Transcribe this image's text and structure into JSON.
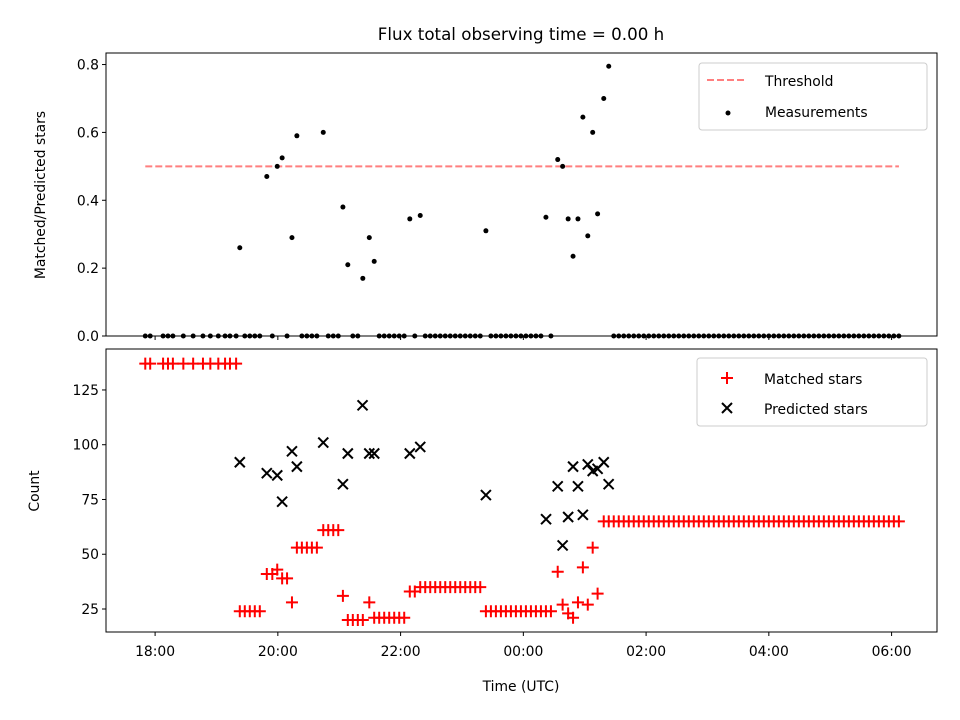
{
  "chart_data": [
    {
      "type": "scatter",
      "title": "Flux total observing time = 0.00 h",
      "xlabel": "",
      "ylabel": "Matched/Predicted stars",
      "xlim": [
        17.2,
        30.74
      ],
      "ylim": [
        0,
        0.834
      ],
      "yticks": [
        0.0,
        0.2,
        0.4,
        0.6,
        0.8
      ],
      "ytick_labels": [
        "0.0",
        "0.2",
        "0.4",
        "0.6",
        "0.8"
      ],
      "legend": {
        "placement": "top-right",
        "entries": [
          "Threshold",
          "Measurements"
        ]
      },
      "threshold": {
        "name": "Threshold",
        "y": 0.5,
        "x_range": [
          17.84,
          30.12
        ],
        "color": "#ff7f7f"
      },
      "measurements_nonzero": [
        [
          19.38,
          0.26
        ],
        [
          19.82,
          0.47
        ],
        [
          19.99,
          0.5
        ],
        [
          20.07,
          0.525
        ],
        [
          20.23,
          0.29
        ],
        [
          20.31,
          0.59
        ],
        [
          20.74,
          0.6
        ],
        [
          21.06,
          0.38
        ],
        [
          21.14,
          0.21
        ],
        [
          21.38,
          0.17
        ],
        [
          21.49,
          0.29
        ],
        [
          21.57,
          0.22
        ],
        [
          22.15,
          0.345
        ],
        [
          22.32,
          0.355
        ],
        [
          23.39,
          0.31
        ],
        [
          24.37,
          0.35
        ],
        [
          24.56,
          0.52
        ],
        [
          24.64,
          0.5
        ],
        [
          24.73,
          0.345
        ],
        [
          24.81,
          0.235
        ],
        [
          24.89,
          0.345
        ],
        [
          24.97,
          0.645
        ],
        [
          25.05,
          0.295
        ],
        [
          25.13,
          0.6
        ],
        [
          25.21,
          0.36
        ],
        [
          25.31,
          0.7
        ],
        [
          25.39,
          0.795
        ]
      ],
      "measurements_note_zero": "all other observation times have value 0"
    },
    {
      "type": "scatter",
      "xlabel": "Time (UTC)",
      "ylabel": "Count",
      "xlim": [
        17.2,
        30.74
      ],
      "ylim": [
        14.5,
        143.7
      ],
      "xticks": [
        18,
        20,
        22,
        24,
        26,
        28,
        30
      ],
      "xtick_labels": [
        "18:00",
        "20:00",
        "22:00",
        "00:00",
        "02:00",
        "04:00",
        "06:00"
      ],
      "yticks": [
        25,
        50,
        75,
        100,
        125
      ],
      "ytick_labels": [
        "25",
        "50",
        "75",
        "100",
        "125"
      ],
      "legend": {
        "placement": "top-right",
        "entries": [
          "Matched stars",
          "Predicted stars"
        ]
      },
      "matched_step_h": 0.0815,
      "matched_runs": [
        [
          17.84,
          1,
          137
        ],
        [
          17.92,
          1,
          137
        ],
        [
          18.13,
          1,
          137
        ],
        [
          18.21,
          1,
          137
        ],
        [
          18.29,
          1,
          137
        ],
        [
          18.46,
          1,
          137
        ],
        [
          18.62,
          1,
          137
        ],
        [
          18.78,
          1,
          137
        ],
        [
          18.9,
          1,
          137
        ],
        [
          19.03,
          1,
          137
        ],
        [
          19.14,
          1,
          137
        ],
        [
          19.22,
          1,
          137
        ],
        [
          19.32,
          1,
          137
        ],
        [
          19.38,
          5,
          24
        ],
        [
          19.82,
          1,
          41
        ],
        [
          19.91,
          1,
          41
        ],
        [
          19.99,
          1,
          43
        ],
        [
          20.07,
          1,
          39
        ],
        [
          20.15,
          1,
          39
        ],
        [
          20.23,
          1,
          28
        ],
        [
          20.31,
          5,
          53
        ],
        [
          20.74,
          4,
          61
        ],
        [
          21.06,
          1,
          31
        ],
        [
          21.14,
          4,
          20
        ],
        [
          21.49,
          1,
          28
        ],
        [
          21.57,
          7,
          21
        ],
        [
          22.15,
          2,
          33
        ],
        [
          22.32,
          13,
          35
        ],
        [
          23.39,
          14,
          24
        ],
        [
          24.56,
          1,
          42
        ],
        [
          24.64,
          1,
          27
        ],
        [
          24.73,
          1,
          23
        ],
        [
          24.81,
          1,
          21
        ],
        [
          24.89,
          1,
          28
        ],
        [
          24.97,
          1,
          44
        ],
        [
          25.05,
          1,
          27
        ],
        [
          25.13,
          1,
          53
        ],
        [
          25.21,
          1,
          32
        ],
        [
          25.31,
          60,
          65
        ]
      ],
      "predicted": [
        [
          19.38,
          92
        ],
        [
          19.82,
          87
        ],
        [
          19.99,
          86
        ],
        [
          20.07,
          74
        ],
        [
          20.23,
          97
        ],
        [
          20.31,
          90
        ],
        [
          20.74,
          101
        ],
        [
          21.06,
          82
        ],
        [
          21.14,
          96
        ],
        [
          21.38,
          118
        ],
        [
          21.49,
          96
        ],
        [
          21.57,
          96
        ],
        [
          22.15,
          96
        ],
        [
          22.32,
          99
        ],
        [
          23.39,
          77
        ],
        [
          24.37,
          66
        ],
        [
          24.56,
          81
        ],
        [
          24.64,
          54
        ],
        [
          24.73,
          67
        ],
        [
          24.81,
          90
        ],
        [
          24.89,
          81
        ],
        [
          24.97,
          68
        ],
        [
          25.05,
          91
        ],
        [
          25.13,
          88
        ],
        [
          25.21,
          89
        ],
        [
          25.31,
          92
        ],
        [
          25.39,
          82
        ]
      ],
      "colors": {
        "matched": "#ff0000",
        "predicted": "#000000"
      }
    }
  ]
}
